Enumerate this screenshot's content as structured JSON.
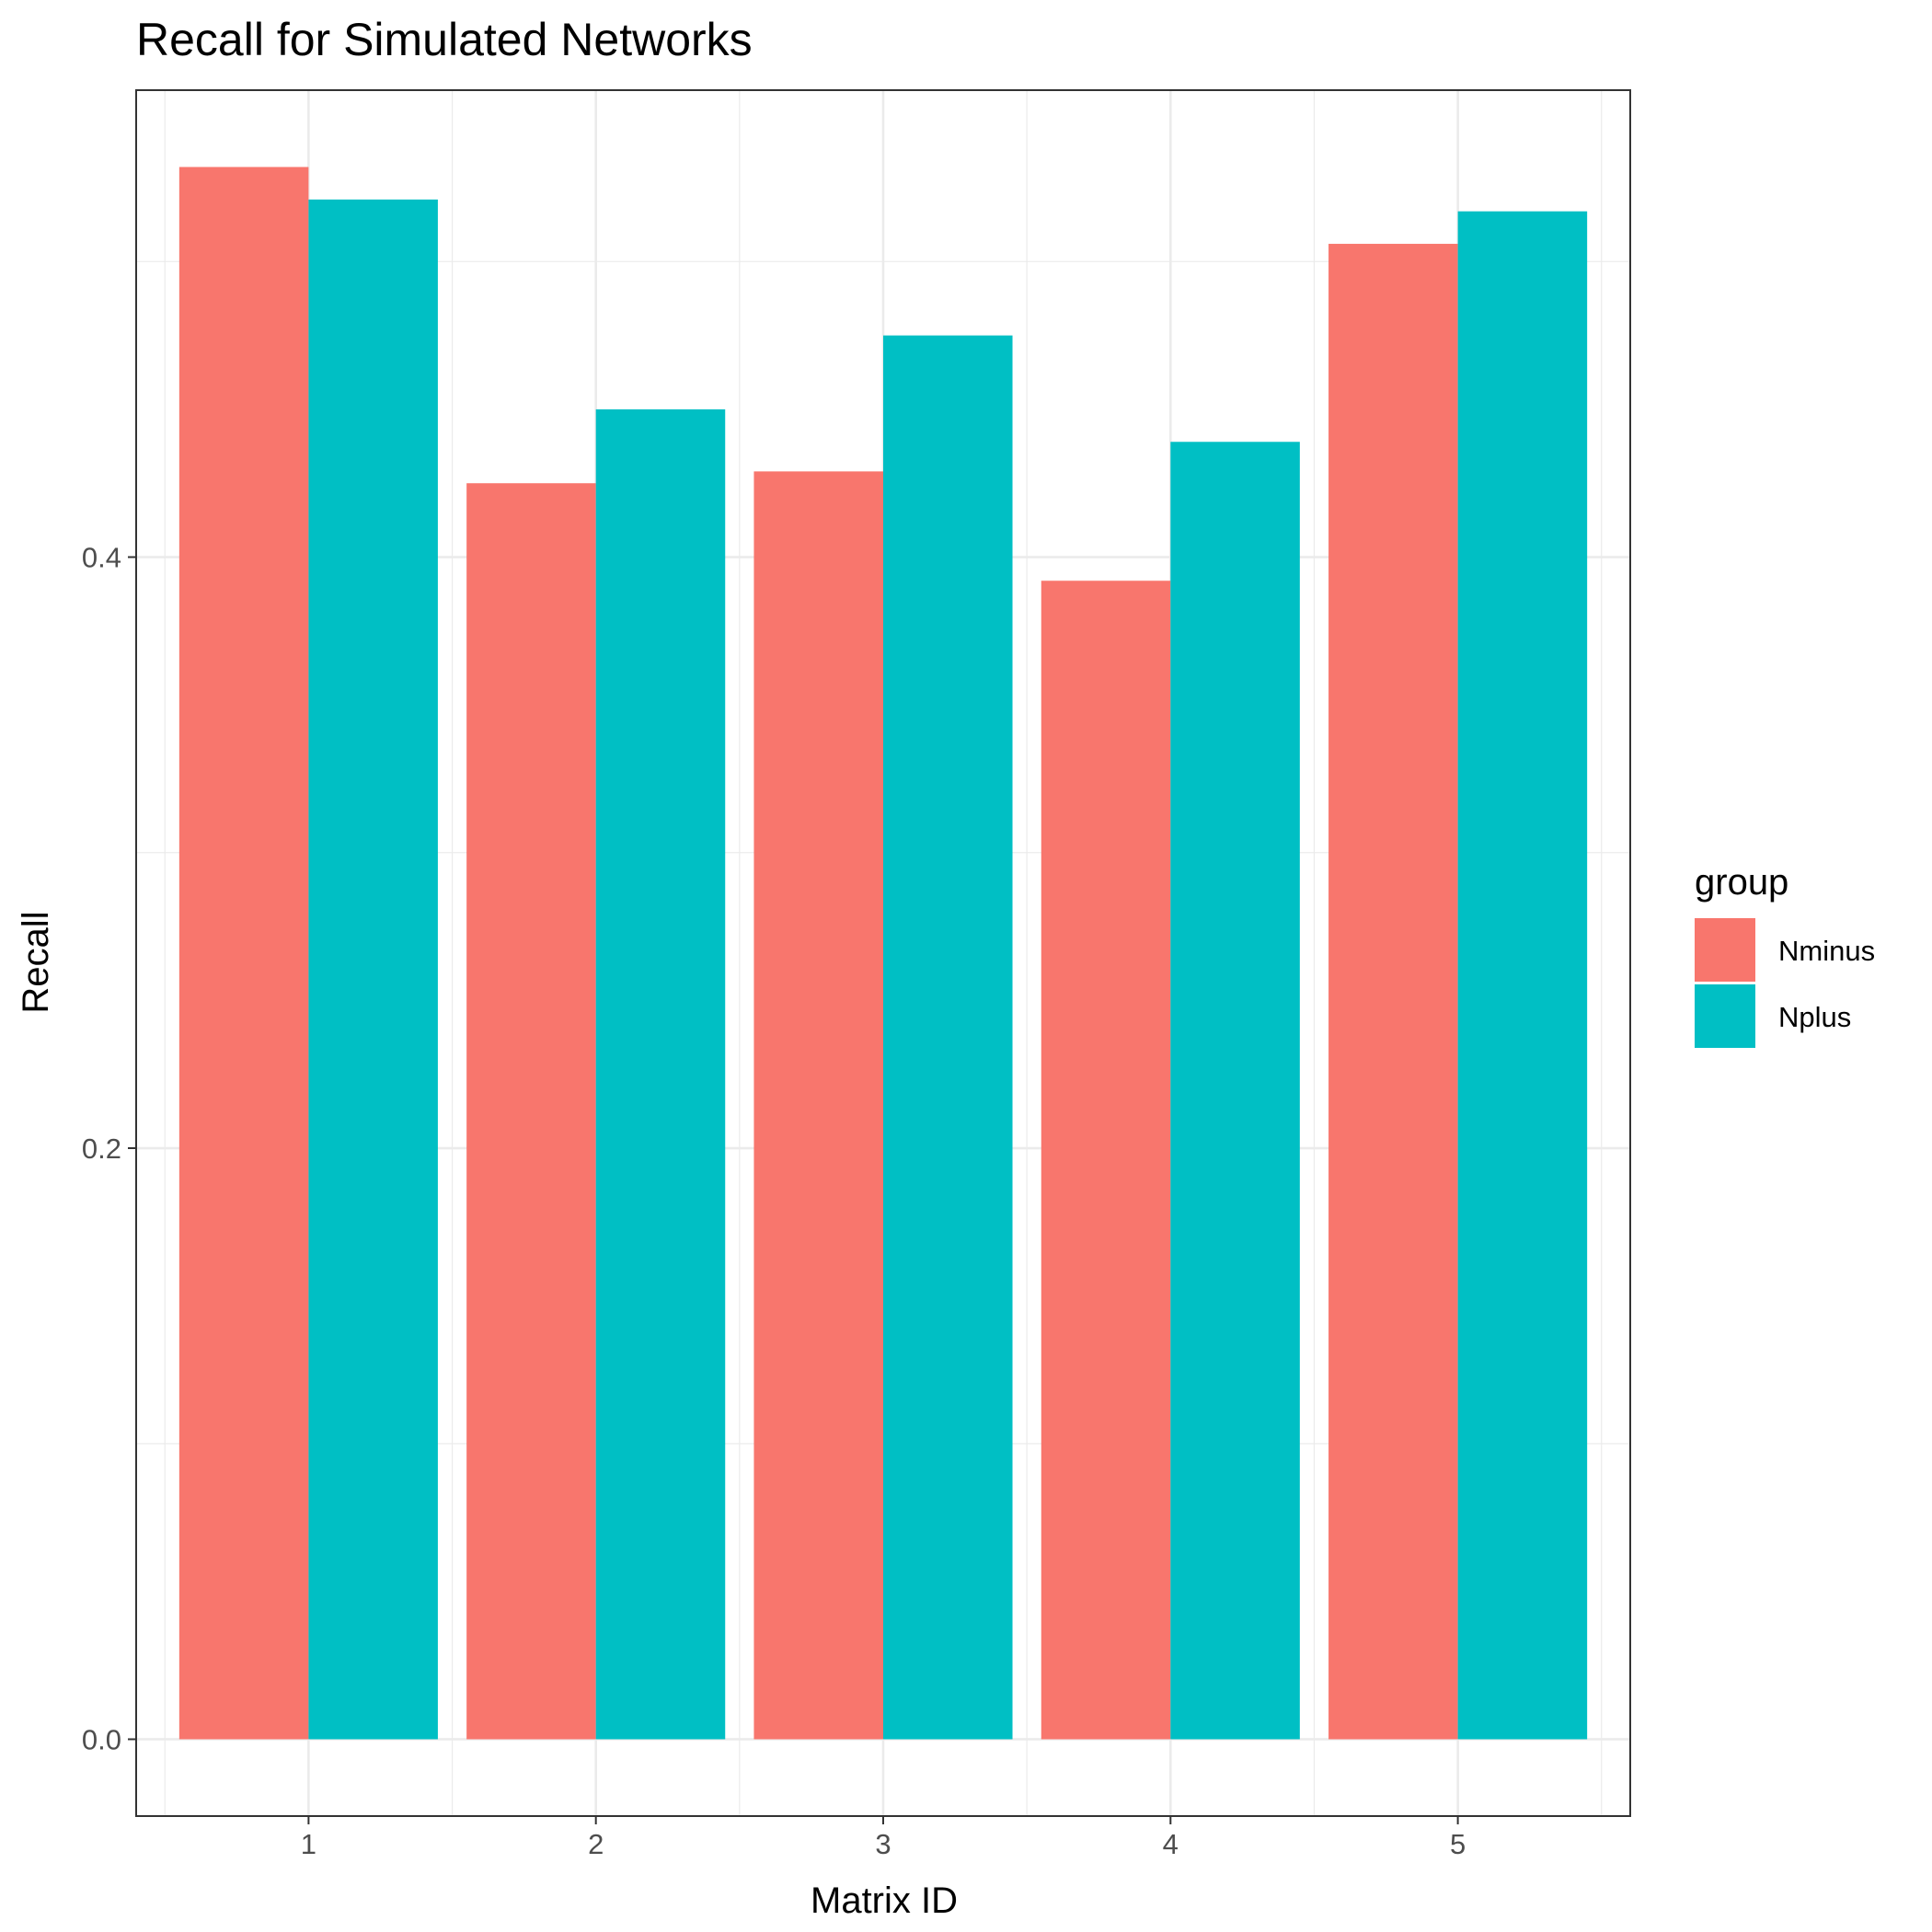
{
  "chart_data": {
    "type": "bar",
    "title": "Recall for Simulated Networks",
    "xlabel": "Matrix ID",
    "ylabel": "Recall",
    "categories": [
      "1",
      "2",
      "3",
      "4",
      "5"
    ],
    "series": [
      {
        "name": "Nminus",
        "color": "#F8766D",
        "values": [
          0.532,
          0.425,
          0.429,
          0.392,
          0.506
        ]
      },
      {
        "name": "Nplus",
        "color": "#00BFC4",
        "values": [
          0.521,
          0.45,
          0.475,
          0.439,
          0.517
        ]
      }
    ],
    "ylim": [
      -0.026,
      0.558
    ],
    "yticks": [
      0.0,
      0.2,
      0.4
    ],
    "ytick_labels": [
      "0.0",
      "0.2",
      "0.4"
    ],
    "grid": true,
    "legend": {
      "title": "group",
      "placement": "right"
    }
  }
}
